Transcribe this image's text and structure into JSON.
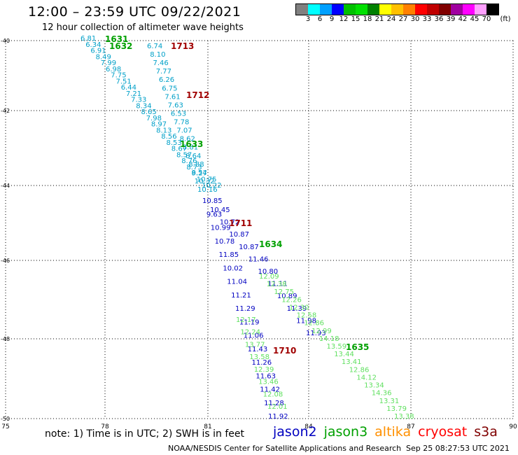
{
  "title": "12:00 – 23:59 UTC 09/22/2021",
  "subtitle": "12 hour collection of altimeter wave heights",
  "legend": {
    "unit": "(ft)",
    "colors": [
      "#808080",
      "#00ffff",
      "#00a0ff",
      "#0000ff",
      "#00c000",
      "#00e000",
      "#008000",
      "#ffff00",
      "#ffc000",
      "#ff8000",
      "#ff0000",
      "#c00000",
      "#800000",
      "#a000a0",
      "#ff00ff",
      "#ffa0ff",
      "#000000"
    ],
    "labels": [
      "3",
      "6",
      "9",
      "12",
      "15",
      "18",
      "21",
      "24",
      "27",
      "30",
      "33",
      "36",
      "39",
      "42",
      "45",
      "70"
    ]
  },
  "axes": {
    "x_ticks": [
      "75",
      "78",
      "81",
      "84",
      "87",
      "90"
    ],
    "y_ticks": [
      "-40",
      "-42",
      "-44",
      "-46",
      "-48",
      "-50"
    ]
  },
  "tracks": [
    {
      "id": "1631",
      "color": "#00a000"
    },
    {
      "id": "1632",
      "color": "#00a000"
    },
    {
      "id": "1713",
      "color": "#a00000"
    },
    {
      "id": "1712",
      "color": "#a00000"
    },
    {
      "id": "1633",
      "color": "#00a000"
    },
    {
      "id": "1711",
      "color": "#a00000"
    },
    {
      "id": "1634",
      "color": "#00a000"
    },
    {
      "id": "1710",
      "color": "#a00000"
    },
    {
      "id": "1635",
      "color": "#00a000"
    }
  ],
  "wave_groups": {
    "cyan_left": {
      "color": "#00a0c8",
      "values": [
        "6.81",
        "6.34",
        "6.91",
        "8.49",
        "7.99",
        "6.98",
        "7.75",
        "7.51",
        "6.44",
        "7.21",
        "7.33",
        "8.34",
        "8.65",
        "7.98",
        "8.97",
        "8.13",
        "8.56",
        "8.53",
        "8.67",
        "8.57",
        "8.76",
        "8.73",
        "9.27",
        "10.75",
        "10.22"
      ]
    },
    "cyan_right": {
      "color": "#00a0c8",
      "values": [
        "6.74",
        "8.10",
        "7.46",
        "7.77",
        "6.26",
        "6.75",
        "7.61",
        "7.63",
        "6.53",
        "7.78",
        "7.07",
        "8.62",
        "8.81",
        "8.64",
        "8.88",
        "8.54",
        "10.32",
        "10.16"
      ]
    },
    "blue_left": {
      "color": "#0000c0",
      "values": [
        "10.85",
        "9.63",
        "10.99",
        "10.78",
        "11.85",
        "10.02",
        "11.04",
        "11.21",
        "11.29",
        "11.19",
        "11.06",
        "11.43",
        "11.26",
        "11.63",
        "11.42",
        "11.28",
        "11.92"
      ]
    },
    "blue_right": {
      "color": "#0000c0",
      "values": [
        "10.45",
        "10.72",
        "10.87",
        "10.87",
        "11.46",
        "10.80",
        "11.11",
        "10.89",
        "11.39",
        "11.98",
        "11.93"
      ]
    },
    "green_left": {
      "color": "#60e060",
      "values": [
        "12.17",
        "12.24",
        "13.77",
        "13.58",
        "12.39",
        "13.46",
        "12.08",
        "12.01"
      ]
    },
    "green_right": {
      "color": "#60e060",
      "values": [
        "12.09",
        "12.38",
        "12.75",
        "12.26",
        "12.30",
        "12.58",
        "12.86",
        "12.99",
        "14.18",
        "13.59",
        "13.44",
        "13.41",
        "12.86",
        "14.12",
        "13.34",
        "14.36",
        "13.31",
        "13.79",
        "13.38"
      ]
    }
  },
  "footer": {
    "note": "note: 1) Time is in UTC; 2) SWH is in feet",
    "credit": "NOAA/NESDIS Center for Satellite Applications and Research",
    "timestamp": "Sep 25 08:27:53 UTC 2021"
  },
  "satellites": [
    {
      "name": "jason2",
      "color": "#0000c0"
    },
    {
      "name": "jason3",
      "color": "#00a000"
    },
    {
      "name": "altika",
      "color": "#ff9000"
    },
    {
      "name": "cryosat",
      "color": "#ff0000"
    },
    {
      "name": "s3a",
      "color": "#800000"
    }
  ]
}
